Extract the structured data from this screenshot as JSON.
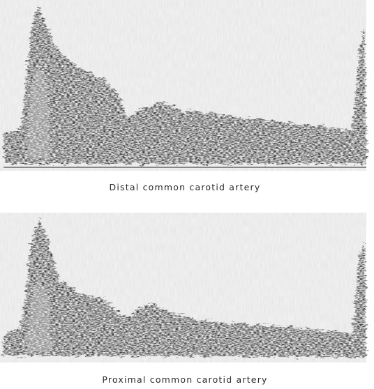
{
  "figure": {
    "panels": [
      {
        "caption": "Distal common carotid artery"
      },
      {
        "caption": "Proximal common carotid artery"
      }
    ]
  }
}
